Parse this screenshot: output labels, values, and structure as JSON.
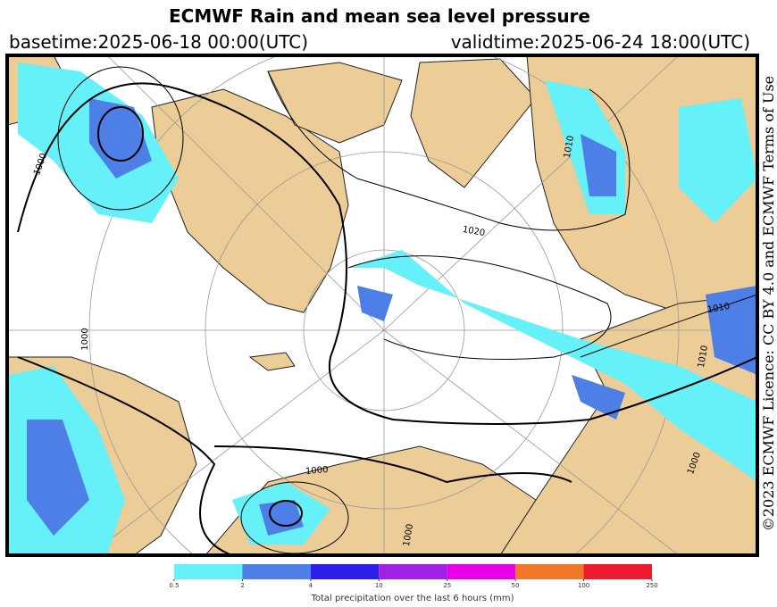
{
  "header": {
    "title": "ECMWF Rain and mean sea level pressure",
    "basetime": "basetime:2025-06-18 00:00(UTC)",
    "validtime": "validtime:2025-06-24 18:00(UTC)"
  },
  "licence": "©2023 ECMWF Licence: CC BY 4.0 and ECMWF Terms of Use",
  "map": {
    "isobar_labels": [
      "1000",
      "1010",
      "1020",
      "1010",
      "1010",
      "1000",
      "1000",
      "1000",
      "1000"
    ]
  },
  "colorbar": {
    "ticks": [
      0.5,
      2,
      4,
      10,
      25,
      50,
      100,
      250
    ],
    "colors": [
      "#66f0f7",
      "#4d7fe6",
      "#2b1ee8",
      "#a020e6",
      "#e800e8",
      "#f07828",
      "#ee1a30"
    ],
    "label": "Total precipitation over the last 6 hours (mm)"
  }
}
